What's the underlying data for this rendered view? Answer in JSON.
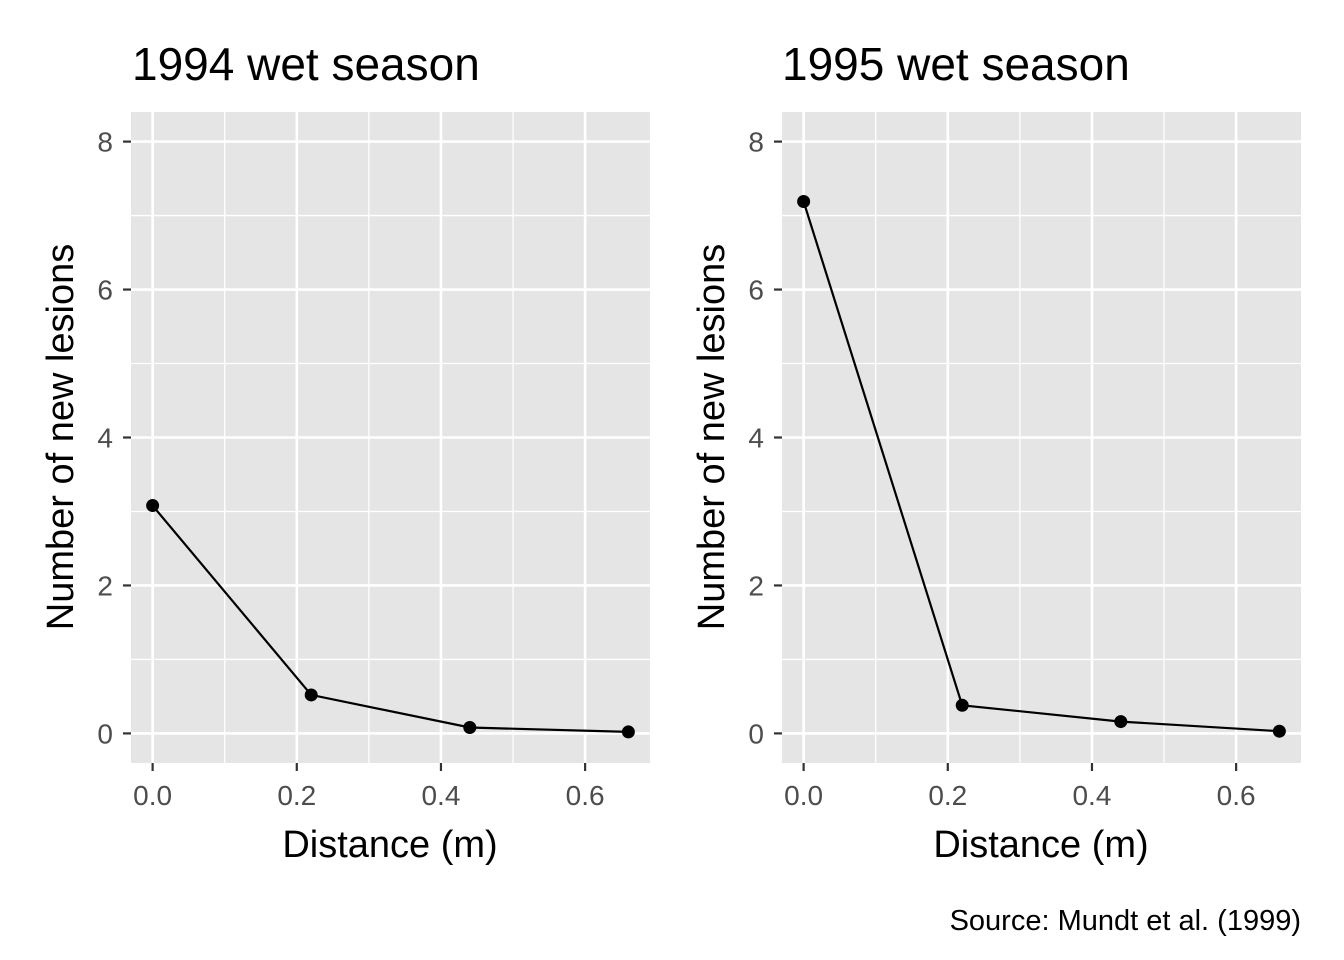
{
  "caption": "Source: Mundt et al. (1999)",
  "style": {
    "panel_background": "#e5e5e5",
    "grid_color": "#ffffff",
    "line_color": "#000000",
    "point_color": "#000000",
    "tick_color": "#333333"
  },
  "chart_data": [
    {
      "type": "line",
      "title": "1994 wet season",
      "xlabel": "Distance (m)",
      "ylabel": "Number of new lesions",
      "xlim": [
        -0.03,
        0.69
      ],
      "ylim": [
        -0.4,
        8.4
      ],
      "x_ticks": [
        0.0,
        0.2,
        0.4,
        0.6
      ],
      "x_tick_labels": [
        "0.0",
        "0.2",
        "0.4",
        "0.6"
      ],
      "y_ticks": [
        0,
        2,
        4,
        6,
        8
      ],
      "y_tick_labels": [
        "0",
        "2",
        "4",
        "6",
        "8"
      ],
      "grid": true,
      "legend": "none",
      "x": [
        0.0,
        0.22,
        0.44,
        0.66
      ],
      "y": [
        3.08,
        0.52,
        0.08,
        0.02
      ]
    },
    {
      "type": "line",
      "title": "1995 wet season",
      "xlabel": "Distance (m)",
      "ylabel": "Number of new lesions",
      "xlim": [
        -0.03,
        0.69
      ],
      "ylim": [
        -0.4,
        8.4
      ],
      "x_ticks": [
        0.0,
        0.2,
        0.4,
        0.6
      ],
      "x_tick_labels": [
        "0.0",
        "0.2",
        "0.4",
        "0.6"
      ],
      "y_ticks": [
        0,
        2,
        4,
        6,
        8
      ],
      "y_tick_labels": [
        "0",
        "2",
        "4",
        "6",
        "8"
      ],
      "grid": true,
      "legend": "none",
      "x": [
        0.0,
        0.22,
        0.44,
        0.66
      ],
      "y": [
        7.19,
        0.38,
        0.16,
        0.03
      ]
    }
  ]
}
